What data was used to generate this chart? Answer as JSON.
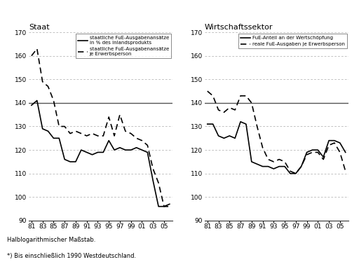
{
  "title_left": "Staat",
  "title_right": "Wirtschaftssektor",
  "footnote1": "Halblogarithmischer Maßstab.",
  "footnote2": "*) Bis einschließlich 1990 Westdeutschland.",
  "x_labels": [
    "81",
    "83",
    "85",
    "87",
    "89",
    "91",
    "93",
    "95",
    "97",
    "99",
    "01",
    "03",
    "05"
  ],
  "staat_solid": [
    139,
    141,
    129,
    128,
    125,
    125,
    116,
    115,
    115,
    120,
    119,
    118,
    119,
    119,
    124,
    120,
    121,
    120,
    120,
    121,
    120,
    119,
    107,
    96,
    96,
    97
  ],
  "staat_dashed": [
    160,
    163,
    149,
    147,
    141,
    130,
    130,
    127,
    128,
    127,
    126,
    127,
    126,
    126,
    134,
    126,
    135,
    128,
    127,
    125,
    124,
    122,
    112,
    106,
    96,
    96
  ],
  "wirt_solid": [
    131,
    131,
    126,
    125,
    126,
    125,
    132,
    131,
    115,
    114,
    113,
    113,
    112,
    113,
    113,
    110,
    110,
    113,
    119,
    120,
    120,
    117,
    124,
    124,
    123,
    119
  ],
  "wirt_dashed": [
    145,
    143,
    137,
    136,
    138,
    137,
    143,
    143,
    140,
    130,
    121,
    116,
    115,
    116,
    115,
    111,
    110,
    113,
    118,
    119,
    119,
    116,
    122,
    123,
    119,
    111
  ],
  "ylim": [
    90,
    170
  ],
  "yticks": [
    90,
    100,
    110,
    120,
    130,
    140,
    150,
    160,
    170
  ],
  "solid_label_left1": "staatliche FuE-Ausgabenansätze",
  "solid_label_left2": "in % des Inlandsprodukts",
  "dashed_label_left1": "staatliche FuE-Ausgabenansätze",
  "dashed_label_left2": "je Erwerbsperson",
  "solid_label_right": "FuE-Anteil an der Wertschöpfung",
  "dashed_label_right": "reale FuE-Ausgaben je Erwerbsperson",
  "hline_value": 140,
  "bg_color": "#ffffff",
  "line_color": "#000000",
  "grid_color": "#aaaaaa",
  "hline_color": "#555555"
}
